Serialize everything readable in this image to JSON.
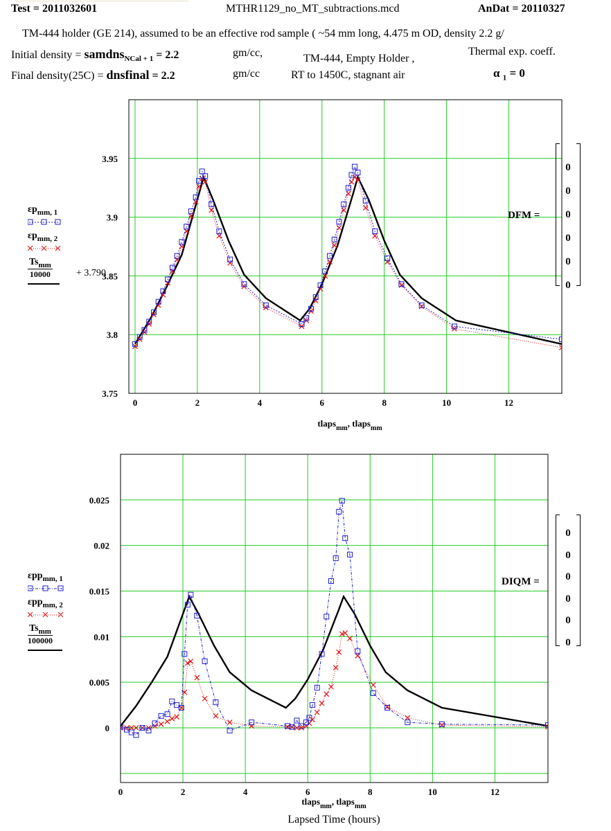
{
  "header": {
    "test_label": "Test = ",
    "test_value": "2011032601",
    "filename": "MTHR1129_no_MT_subtractions.mcd",
    "andat_label": "AnDat = ",
    "andat_value": "20110327",
    "sample_desc": "TM-444 holder (GE 214), assumed to be an effective rod sample ( ~54 mm long, 4.475 m OD, density 2.2 g/",
    "init_density_label": "Initial density = ",
    "init_density_var": "samdns",
    "init_density_sub": "NCal + 1",
    "init_density_value": " = 2.2",
    "init_density_unit": "gm/cc,",
    "final_density_label": "Final density(25C) = ",
    "final_density_var": "dnsfinal",
    "final_density_value": " = 2.2",
    "final_density_unit": "gm/cc",
    "run_desc_1": "TM-444, Empty Holder ,",
    "run_desc_2": "RT to 1450C, stagnant air",
    "thermal_label": "Thermal exp. coeff.",
    "alpha_sym": "α",
    "alpha_sub": "1",
    "alpha_value": " = 0"
  },
  "colors": {
    "series1": "#1f1fd0",
    "series2": "#e01010",
    "series3": "#000000",
    "grid": "#22cc22"
  },
  "chart_data": [
    {
      "type": "line",
      "xlabel_main": "tlaps",
      "xlabel_sub": "mm",
      "xlabel_sep": ", ",
      "xlim": [
        -0.2,
        13.7
      ],
      "ylim": [
        3.75,
        4.0
      ],
      "grid": true,
      "x_ticks": [
        0,
        2,
        4,
        6,
        8,
        10,
        12
      ],
      "y_ticks": [
        3.75,
        3.8,
        3.85,
        3.9,
        3.95
      ],
      "x_tick_labels": [
        "0",
        "2",
        "4",
        "6",
        "8",
        "10",
        "12"
      ],
      "y_tick_labels": [
        "3.75",
        "3.8",
        "3.85",
        "3.9",
        "3.95"
      ],
      "legend": [
        {
          "var": "εp",
          "sub": "mm, 1"
        },
        {
          "var": "εp",
          "sub": "mm, 2"
        },
        {
          "num_var": "Ts",
          "num_sub": "mm",
          "den": "10000",
          "suffix": "+ 3.790"
        }
      ],
      "matrix": {
        "label": "DFM =",
        "values": [
          "0",
          "0",
          "0",
          "0",
          "0",
          "0"
        ]
      },
      "series": [
        {
          "marker": "square",
          "x": [
            0,
            0.15,
            0.3,
            0.45,
            0.6,
            0.75,
            0.9,
            1.05,
            1.2,
            1.35,
            1.5,
            1.65,
            1.8,
            1.95,
            2.05,
            2.15,
            2.25,
            2.45,
            2.7,
            3.05,
            3.5,
            4.2,
            5.35,
            5.5,
            5.65,
            5.8,
            5.95,
            6.1,
            6.25,
            6.4,
            6.55,
            6.7,
            6.85,
            6.95,
            7.05,
            7.15,
            7.4,
            7.7,
            8.1,
            8.55,
            9.2,
            10.25,
            13.7
          ],
          "y": [
            3.792,
            3.798,
            3.804,
            3.811,
            3.819,
            3.828,
            3.837,
            3.847,
            3.857,
            3.867,
            3.879,
            3.892,
            3.905,
            3.917,
            3.931,
            3.939,
            3.935,
            3.911,
            3.888,
            3.864,
            3.843,
            3.825,
            3.809,
            3.814,
            3.822,
            3.832,
            3.842,
            3.854,
            3.867,
            3.881,
            3.896,
            3.911,
            3.925,
            3.936,
            3.943,
            3.938,
            3.914,
            3.888,
            3.865,
            3.843,
            3.825,
            3.807,
            3.796
          ]
        },
        {
          "marker": "x",
          "x": [
            0,
            0.15,
            0.3,
            0.45,
            0.6,
            0.75,
            0.9,
            1.05,
            1.2,
            1.35,
            1.5,
            1.65,
            1.8,
            1.95,
            2.05,
            2.15,
            2.25,
            2.45,
            2.7,
            3.05,
            3.5,
            4.2,
            5.35,
            5.5,
            5.65,
            5.8,
            5.95,
            6.1,
            6.25,
            6.4,
            6.55,
            6.7,
            6.85,
            6.95,
            7.05,
            7.15,
            7.4,
            7.7,
            8.1,
            8.55,
            9.2,
            10.25,
            13.7
          ],
          "y": [
            3.79,
            3.796,
            3.802,
            3.809,
            3.817,
            3.825,
            3.834,
            3.844,
            3.854,
            3.864,
            3.875,
            3.888,
            3.901,
            3.913,
            3.926,
            3.933,
            3.93,
            3.906,
            3.884,
            3.861,
            3.841,
            3.823,
            3.807,
            3.812,
            3.82,
            3.829,
            3.839,
            3.85,
            3.862,
            3.876,
            3.891,
            3.906,
            3.92,
            3.93,
            3.934,
            3.932,
            3.908,
            3.884,
            3.862,
            3.842,
            3.824,
            3.805,
            3.789
          ]
        },
        {
          "marker": "none",
          "x": [
            0,
            0.5,
            1.0,
            1.5,
            2.0,
            2.2,
            2.5,
            3.0,
            3.5,
            4.2,
            5.3,
            5.6,
            6.0,
            6.5,
            7.0,
            7.15,
            7.5,
            8.0,
            8.5,
            9.2,
            10.3,
            13.7
          ],
          "y": [
            3.792,
            3.814,
            3.84,
            3.868,
            3.915,
            3.934,
            3.915,
            3.88,
            3.851,
            3.831,
            3.812,
            3.822,
            3.843,
            3.876,
            3.92,
            3.934,
            3.915,
            3.88,
            3.851,
            3.831,
            3.812,
            3.792
          ]
        }
      ]
    },
    {
      "type": "line",
      "xlabel_main": "tlaps",
      "xlabel_sub": "mm",
      "xlabel_sep": ", ",
      "xlabel_2": "Lapsed Time (hours)",
      "xlim": [
        0,
        13.7
      ],
      "ylim": [
        -0.006,
        0.03
      ],
      "grid": true,
      "x_ticks": [
        0,
        2,
        4,
        6,
        8,
        10,
        12
      ],
      "y_ticks": [
        -0.005,
        0,
        0.005,
        0.01,
        0.015,
        0.02,
        0.025
      ],
      "x_tick_labels": [
        "0",
        "2",
        "4",
        "6",
        "8",
        "10",
        "12"
      ],
      "y_tick_labels": [
        "",
        "0",
        "0.005",
        "0.01",
        "0.015",
        "0.02",
        "0.025"
      ],
      "legend": [
        {
          "var": "εpp",
          "sub": "mm, 1"
        },
        {
          "var": "εpp",
          "sub": "mm, 2"
        },
        {
          "num_var": "Ts",
          "num_sub": "mm",
          "den": "100000",
          "suffix": ""
        }
      ],
      "matrix": {
        "label": "DIQM =",
        "values": [
          "0",
          "0",
          "0",
          "0",
          "0",
          "0"
        ]
      },
      "series": [
        {
          "marker": "square",
          "x": [
            0,
            0.2,
            0.35,
            0.5,
            0.7,
            0.9,
            1.1,
            1.3,
            1.5,
            1.65,
            1.8,
            1.95,
            2.05,
            2.15,
            2.25,
            2.45,
            2.7,
            3.05,
            3.5,
            4.2,
            5.35,
            5.5,
            5.65,
            5.8,
            5.95,
            6.05,
            6.15,
            6.3,
            6.45,
            6.6,
            6.75,
            6.9,
            7.0,
            7.1,
            7.2,
            7.35,
            7.6,
            8.1,
            8.55,
            9.2,
            10.3,
            13.7
          ],
          "y": [
            0.0001,
            -0.0002,
            -0.0005,
            -0.0008,
            0.0,
            -0.0003,
            0.0005,
            0.0013,
            0.0015,
            0.0029,
            0.0025,
            0.0022,
            0.0081,
            0.0135,
            0.0146,
            0.0123,
            0.0073,
            0.0028,
            -0.0003,
            0.0006,
            0.0002,
            0.0001,
            0.0008,
            0.0002,
            0.0006,
            0.0011,
            0.0025,
            0.0044,
            0.0081,
            0.0122,
            0.0161,
            0.0186,
            0.0237,
            0.0249,
            0.0208,
            0.019,
            0.0084,
            0.0038,
            0.0022,
            0.0006,
            0.0004,
            0.0003
          ]
        },
        {
          "marker": "x",
          "x": [
            0,
            0.2,
            0.35,
            0.5,
            0.7,
            0.9,
            1.1,
            1.3,
            1.5,
            1.65,
            1.8,
            1.95,
            2.05,
            2.15,
            2.25,
            2.45,
            2.7,
            3.05,
            3.5,
            4.2,
            5.35,
            5.5,
            5.65,
            5.8,
            5.95,
            6.05,
            6.15,
            6.3,
            6.45,
            6.6,
            6.75,
            6.9,
            7.0,
            7.1,
            7.2,
            7.35,
            7.6,
            8.1,
            8.55,
            9.2,
            10.3,
            13.7
          ],
          "y": [
            0.0,
            0.0,
            0.0,
            0.0,
            0.0,
            0.0,
            0.0002,
            0.0004,
            0.0007,
            0.001,
            0.0012,
            0.0022,
            0.0039,
            0.0071,
            0.0073,
            0.0055,
            0.0032,
            0.0013,
            0.0006,
            0.0002,
            0.0001,
            0.0001,
            0.0,
            0.0,
            0.0002,
            0.0005,
            0.0009,
            0.0017,
            0.0027,
            0.0037,
            0.0045,
            0.0066,
            0.0083,
            0.0103,
            0.0104,
            0.0098,
            0.0079,
            0.0047,
            0.0023,
            0.0011,
            0.0003,
            0.0001
          ]
        },
        {
          "marker": "none",
          "x": [
            0,
            0.5,
            1.0,
            1.5,
            2.0,
            2.2,
            2.5,
            3.0,
            3.5,
            4.2,
            5.3,
            5.6,
            6.0,
            6.5,
            7.0,
            7.15,
            7.5,
            8.0,
            8.5,
            9.2,
            10.3,
            13.7
          ],
          "y": [
            0.0002,
            0.0024,
            0.005,
            0.0078,
            0.0125,
            0.0144,
            0.0125,
            0.009,
            0.0061,
            0.0041,
            0.0022,
            0.0032,
            0.0053,
            0.0086,
            0.013,
            0.0144,
            0.0125,
            0.009,
            0.0061,
            0.0041,
            0.0022,
            0.0002
          ]
        }
      ]
    }
  ]
}
